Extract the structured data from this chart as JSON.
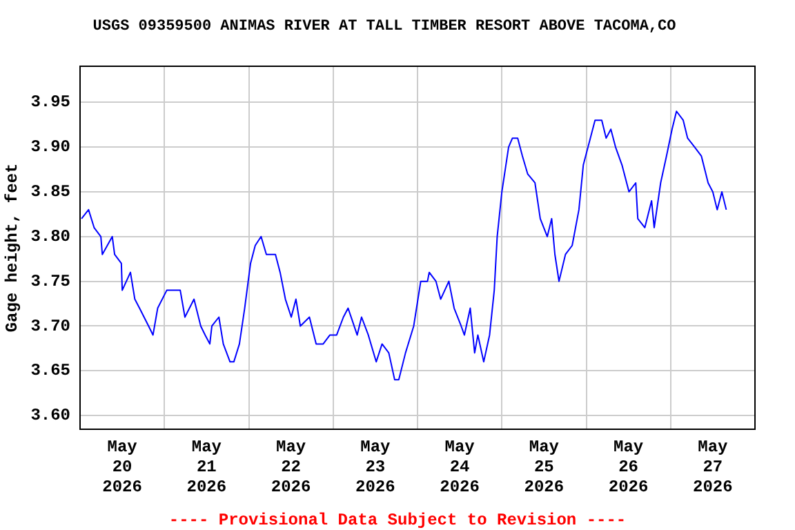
{
  "chart_data": {
    "type": "line",
    "title": "USGS 09359500 ANIMAS RIVER AT TALL TIMBER RESORT ABOVE TACOMA,CO",
    "ylabel": "Gage height, feet",
    "annotations": [
      "---- Provisional Data Subject to Revision ----"
    ],
    "x": [
      "2026-05-20T00:25",
      "2026-05-20T02:25",
      "2026-05-20T04:00",
      "2026-05-20T05:55",
      "2026-05-20T06:20",
      "2026-05-20T09:10",
      "2026-05-20T09:50",
      "2026-05-20T11:45",
      "2026-05-20T12:00",
      "2026-05-20T14:20",
      "2026-05-20T15:35",
      "2026-05-20T16:55",
      "2026-05-20T19:30",
      "2026-05-20T20:45",
      "2026-05-20T22:05",
      "2026-05-21T00:40",
      "2026-05-21T02:35",
      "2026-05-21T04:30",
      "2026-05-21T05:50",
      "2026-05-21T08:25",
      "2026-05-21T10:20",
      "2026-05-21T11:35",
      "2026-05-21T12:55",
      "2026-05-21T13:30",
      "2026-05-21T15:30",
      "2026-05-21T16:45",
      "2026-05-21T18:40",
      "2026-05-21T19:45",
      "2026-05-21T21:20",
      "2026-05-21T22:50",
      "2026-05-22T00:30",
      "2026-05-22T01:50",
      "2026-05-22T03:30",
      "2026-05-22T05:00",
      "2026-05-22T07:35",
      "2026-05-22T08:55",
      "2026-05-22T10:25",
      "2026-05-22T12:05",
      "2026-05-22T13:25",
      "2026-05-22T14:40",
      "2026-05-22T17:15",
      "2026-05-22T19:10",
      "2026-05-22T21:10",
      "2026-05-22T23:05",
      "2026-05-23T01:00",
      "2026-05-23T02:55",
      "2026-05-23T04:15",
      "2026-05-23T06:50",
      "2026-05-23T08:05",
      "2026-05-23T10:00",
      "2026-05-23T12:15",
      "2026-05-23T13:55",
      "2026-05-23T15:50",
      "2026-05-23T17:30",
      "2026-05-23T18:40",
      "2026-05-23T20:35",
      "2026-05-23T22:55",
      "2026-05-24T00:55",
      "2026-05-24T02:50",
      "2026-05-24T03:20",
      "2026-05-24T05:15",
      "2026-05-24T06:35",
      "2026-05-24T08:55",
      "2026-05-24T10:25",
      "2026-05-24T12:25",
      "2026-05-24T13:20",
      "2026-05-24T15:00",
      "2026-05-24T16:15",
      "2026-05-24T17:10",
      "2026-05-24T18:50",
      "2026-05-24T20:30",
      "2026-05-24T21:50",
      "2026-05-24T22:40",
      "2026-05-25T00:00",
      "2026-05-25T01:55",
      "2026-05-25T03:00",
      "2026-05-25T04:30",
      "2026-05-25T05:50",
      "2026-05-25T07:20",
      "2026-05-25T09:25",
      "2026-05-25T10:55",
      "2026-05-25T12:55",
      "2026-05-25T14:10",
      "2026-05-25T15:05",
      "2026-05-25T16:15",
      "2026-05-25T18:05",
      "2026-05-25T20:00",
      "2026-05-25T21:55",
      "2026-05-25T23:10",
      "2026-05-26T01:10",
      "2026-05-26T02:30",
      "2026-05-26T04:25",
      "2026-05-26T05:40",
      "2026-05-26T07:00",
      "2026-05-26T08:20",
      "2026-05-26T10:10",
      "2026-05-26T12:10",
      "2026-05-26T14:05",
      "2026-05-26T14:40",
      "2026-05-26T16:40",
      "2026-05-26T18:35",
      "2026-05-26T19:20",
      "2026-05-26T21:10",
      "2026-05-26T22:50",
      "2026-05-27T00:25",
      "2026-05-27T01:40",
      "2026-05-27T03:35",
      "2026-05-27T04:50",
      "2026-05-27T06:50",
      "2026-05-27T08:45",
      "2026-05-27T10:40",
      "2026-05-27T12:00",
      "2026-05-27T13:15",
      "2026-05-27T14:35",
      "2026-05-27T15:50"
    ],
    "series": [
      {
        "color": "#0000ff",
        "values": [
          3.82,
          3.83,
          3.81,
          3.8,
          3.78,
          3.8,
          3.78,
          3.77,
          3.74,
          3.76,
          3.73,
          3.72,
          3.7,
          3.69,
          3.72,
          3.74,
          3.74,
          3.74,
          3.71,
          3.73,
          3.7,
          3.69,
          3.68,
          3.7,
          3.71,
          3.68,
          3.66,
          3.66,
          3.68,
          3.72,
          3.77,
          3.79,
          3.8,
          3.78,
          3.78,
          3.76,
          3.73,
          3.71,
          3.73,
          3.7,
          3.71,
          3.68,
          3.68,
          3.69,
          3.69,
          3.71,
          3.72,
          3.69,
          3.71,
          3.69,
          3.66,
          3.68,
          3.67,
          3.64,
          3.64,
          3.67,
          3.7,
          3.75,
          3.75,
          3.76,
          3.75,
          3.73,
          3.75,
          3.72,
          3.7,
          3.69,
          3.72,
          3.67,
          3.69,
          3.66,
          3.69,
          3.74,
          3.8,
          3.85,
          3.9,
          3.91,
          3.91,
          3.89,
          3.87,
          3.86,
          3.82,
          3.8,
          3.82,
          3.78,
          3.75,
          3.78,
          3.79,
          3.83,
          3.88,
          3.91,
          3.93,
          3.93,
          3.91,
          3.92,
          3.9,
          3.88,
          3.85,
          3.86,
          3.82,
          3.81,
          3.84,
          3.81,
          3.86,
          3.89,
          3.92,
          3.94,
          3.93,
          3.91,
          3.9,
          3.89,
          3.86,
          3.85,
          3.83,
          3.85,
          3.83
        ]
      }
    ],
    "xlim": [
      "2026-05-20",
      "2026-05-28"
    ],
    "xticks": [
      {
        "value": "2026-05-20T12:00",
        "label": "May 20 2026"
      },
      {
        "value": "2026-05-21",
        "label": null
      },
      {
        "value": "2026-05-21T12:00",
        "label": "May 21 2026"
      },
      {
        "value": "2026-05-22",
        "label": null
      },
      {
        "value": "2026-05-22T12:00",
        "label": "May 22 2026"
      },
      {
        "value": "2026-05-23",
        "label": null
      },
      {
        "value": "2026-05-23T12:00",
        "label": "May 23 2026"
      },
      {
        "value": "2026-05-24",
        "label": null
      },
      {
        "value": "2026-05-24T12:00",
        "label": "May 24 2026"
      },
      {
        "value": "2026-05-25",
        "label": null
      },
      {
        "value": "2026-05-25T12:00",
        "label": "May 25 2026"
      },
      {
        "value": "2026-05-26",
        "label": null
      },
      {
        "value": "2026-05-26T12:00",
        "label": "May 26 2026"
      },
      {
        "value": "2026-05-27",
        "label": null
      },
      {
        "value": "2026-05-27T12:00",
        "label": "May 27 2026"
      }
    ],
    "ylim": [
      3.585,
      3.99
    ],
    "yticks": [
      {
        "value": 3.6,
        "label": "3.60"
      },
      {
        "value": 3.65,
        "label": "3.65"
      },
      {
        "value": 3.7,
        "label": "3.70"
      },
      {
        "value": 3.75,
        "label": "3.75"
      },
      {
        "value": 3.8,
        "label": "3.80"
      },
      {
        "value": 3.85,
        "label": "3.85"
      },
      {
        "value": 3.9,
        "label": "3.90"
      },
      {
        "value": 3.95,
        "label": "3.95"
      }
    ],
    "grid": true,
    "legend": false,
    "marker": "none",
    "line_style": "solid"
  }
}
